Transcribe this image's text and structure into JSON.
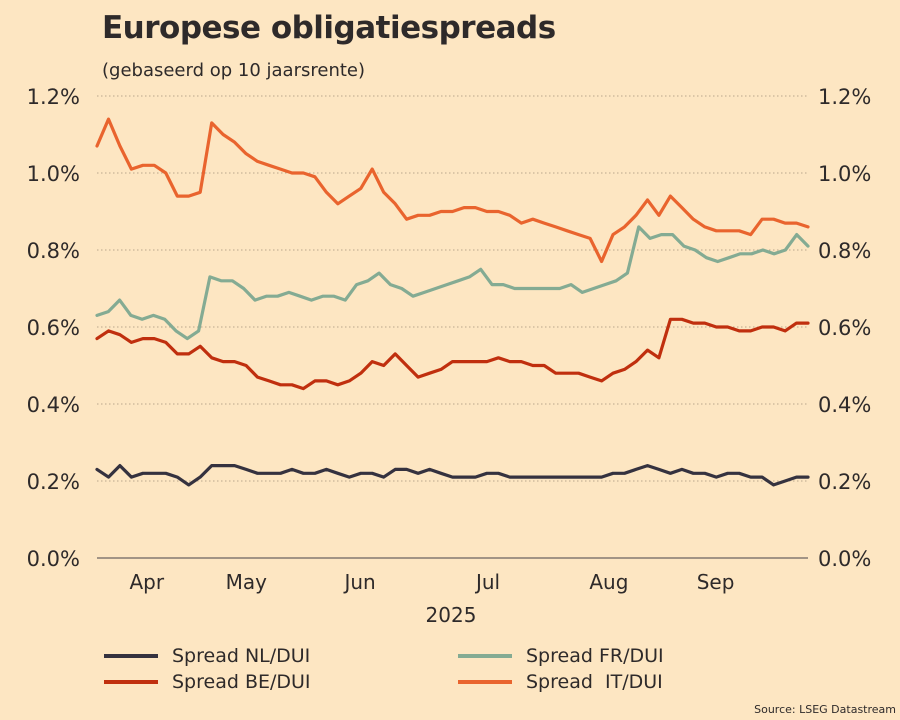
{
  "title": "Europese obligatiespreads",
  "subtitle": "(gebaseerd op 10 jaarsrente)",
  "source": "Source: LSEG Datastream",
  "chart_data": {
    "type": "line",
    "title": "Europese obligatiespreads",
    "subtitle": "(gebaseerd op 10 jaarsrente)",
    "xlabel": "2025",
    "ylabel": "",
    "ylim": [
      0,
      1.2
    ],
    "y_ticks": [
      "0.0%",
      "0.2%",
      "0.4%",
      "0.6%",
      "0.8%",
      "1.0%",
      "1.2%"
    ],
    "y_tick_values": [
      0,
      0.2,
      0.4,
      0.6,
      0.8,
      1.0,
      1.2
    ],
    "x_ticks": [
      "Apr",
      "May",
      "Jun",
      "Jul",
      "Aug",
      "Sep"
    ],
    "x_tick_positions": [
      0.07,
      0.21,
      0.37,
      0.55,
      0.72,
      0.87
    ],
    "grid": true,
    "legend_position": "bottom",
    "series": [
      {
        "name": "Spread NL/DUI",
        "color": "#35323f",
        "values": [
          0.23,
          0.21,
          0.24,
          0.21,
          0.22,
          0.22,
          0.22,
          0.21,
          0.19,
          0.21,
          0.24,
          0.24,
          0.24,
          0.23,
          0.22,
          0.22,
          0.22,
          0.23,
          0.22,
          0.22,
          0.23,
          0.22,
          0.21,
          0.22,
          0.22,
          0.21,
          0.23,
          0.23,
          0.22,
          0.23,
          0.22,
          0.21,
          0.21,
          0.21,
          0.22,
          0.22,
          0.21,
          0.21,
          0.21,
          0.21,
          0.21,
          0.21,
          0.21,
          0.21,
          0.21,
          0.22,
          0.22,
          0.23,
          0.24,
          0.23,
          0.22,
          0.23,
          0.22,
          0.22,
          0.21,
          0.22,
          0.22,
          0.21,
          0.21,
          0.19,
          0.2,
          0.21,
          0.21
        ]
      },
      {
        "name": "Spread BE/DUI",
        "color": "#c02f0e",
        "values": [
          0.57,
          0.59,
          0.58,
          0.56,
          0.57,
          0.57,
          0.56,
          0.53,
          0.53,
          0.55,
          0.52,
          0.51,
          0.51,
          0.5,
          0.47,
          0.46,
          0.45,
          0.45,
          0.44,
          0.46,
          0.46,
          0.45,
          0.46,
          0.48,
          0.51,
          0.5,
          0.53,
          0.5,
          0.47,
          0.48,
          0.49,
          0.51,
          0.51,
          0.51,
          0.51,
          0.52,
          0.51,
          0.51,
          0.5,
          0.5,
          0.48,
          0.48,
          0.48,
          0.47,
          0.46,
          0.48,
          0.49,
          0.51,
          0.54,
          0.52,
          0.62,
          0.62,
          0.61,
          0.61,
          0.6,
          0.6,
          0.59,
          0.59,
          0.6,
          0.6,
          0.59,
          0.61,
          0.61
        ]
      },
      {
        "name": "Spread FR/DUI",
        "color": "#84ab93",
        "values": [
          0.63,
          0.64,
          0.67,
          0.63,
          0.62,
          0.63,
          0.62,
          0.59,
          0.57,
          0.59,
          0.73,
          0.72,
          0.72,
          0.7,
          0.67,
          0.68,
          0.68,
          0.69,
          0.68,
          0.67,
          0.68,
          0.68,
          0.67,
          0.71,
          0.72,
          0.74,
          0.71,
          0.7,
          0.68,
          0.69,
          0.7,
          0.71,
          0.72,
          0.73,
          0.75,
          0.71,
          0.71,
          0.7,
          0.7,
          0.7,
          0.7,
          0.7,
          0.71,
          0.69,
          0.7,
          0.71,
          0.72,
          0.74,
          0.86,
          0.83,
          0.84,
          0.84,
          0.81,
          0.8,
          0.78,
          0.77,
          0.78,
          0.79,
          0.79,
          0.8,
          0.79,
          0.8,
          0.84,
          0.81
        ]
      },
      {
        "name": "Spread  IT/DUI",
        "color": "#e9642e",
        "values": [
          1.07,
          1.14,
          1.07,
          1.01,
          1.02,
          1.02,
          1.0,
          0.94,
          0.94,
          0.95,
          1.13,
          1.1,
          1.08,
          1.05,
          1.03,
          1.02,
          1.01,
          1.0,
          1.0,
          0.99,
          0.95,
          0.92,
          0.94,
          0.96,
          1.01,
          0.95,
          0.92,
          0.88,
          0.89,
          0.89,
          0.9,
          0.9,
          0.91,
          0.91,
          0.9,
          0.9,
          0.89,
          0.87,
          0.88,
          0.87,
          0.86,
          0.85,
          0.84,
          0.83,
          0.77,
          0.84,
          0.86,
          0.89,
          0.93,
          0.89,
          0.94,
          0.91,
          0.88,
          0.86,
          0.85,
          0.85,
          0.85,
          0.84,
          0.88,
          0.88,
          0.87,
          0.87,
          0.86
        ]
      }
    ]
  }
}
